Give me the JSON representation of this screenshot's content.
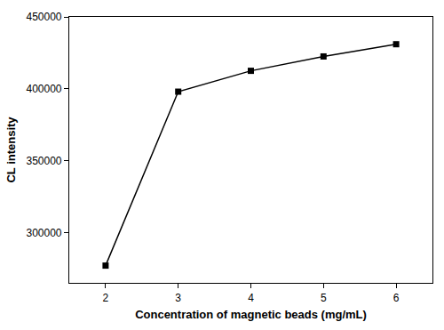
{
  "chart_data": {
    "type": "line",
    "x_label": "Concentration of magnetic beads (mg/mL)",
    "y_label": "CL intensity",
    "x": [
      2,
      3,
      4,
      5,
      6
    ],
    "values": [
      277000,
      398000,
      412500,
      422500,
      431000
    ],
    "color": "#000000",
    "marker": "square",
    "line_style": "solid",
    "xlim": [
      1.5,
      6.5
    ],
    "xticks": [
      2,
      3,
      4,
      5,
      6
    ],
    "ylim": [
      265000,
      450000
    ],
    "yticks": [
      300000,
      350000,
      400000,
      450000
    ],
    "grid": false
  }
}
